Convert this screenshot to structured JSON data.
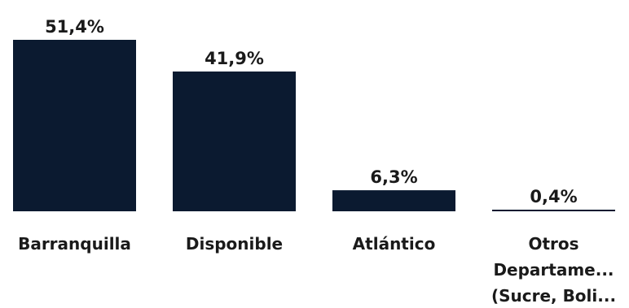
{
  "chart_data": {
    "type": "bar",
    "categories": [
      [
        "Barranquilla"
      ],
      [
        "Disponible"
      ],
      [
        "Atlántico"
      ],
      [
        "Otros",
        "Departame...",
        "(Sucre, Boli..."
      ]
    ],
    "values": [
      51.4,
      41.9,
      6.3,
      0.4
    ],
    "value_labels": [
      "51,4%",
      "41,9%",
      "6,3%",
      "0,4%"
    ],
    "ylim": [
      0,
      51.4
    ],
    "grid": false,
    "legend": "none",
    "bar_color": "#0b1a30",
    "text_color": "#1a1a1a"
  }
}
